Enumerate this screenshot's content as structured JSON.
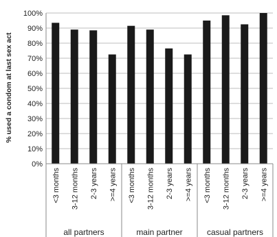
{
  "chart_data": {
    "type": "bar",
    "ylabel": "% used a condom at last sex act",
    "ylim": [
      0,
      100
    ],
    "yticks": [
      "0%",
      "10%",
      "20%",
      "30%",
      "40%",
      "50%",
      "60%",
      "70%",
      "80%",
      "90%",
      "100%"
    ],
    "grid": true,
    "groups": [
      {
        "label": "all partners",
        "categories": [
          "<3 months",
          "3-12 months",
          "2-3 years",
          ">=4 years"
        ],
        "values": [
          93.5,
          89,
          88.5,
          72.5
        ]
      },
      {
        "label": "main partner",
        "categories": [
          "<3 months",
          "3-12 months",
          "2-3 years",
          ">=4 years"
        ],
        "values": [
          91.5,
          89,
          76.5,
          72.5
        ]
      },
      {
        "label": "casual partners",
        "categories": [
          "<3 months",
          "3-12 months",
          "2-3 years",
          ">=4 years"
        ],
        "values": [
          95,
          98.5,
          92.5,
          100
        ]
      }
    ],
    "colors": {
      "bar": "#1a1a1a",
      "grid": "#bdbdbd",
      "axis": "#888888"
    }
  }
}
